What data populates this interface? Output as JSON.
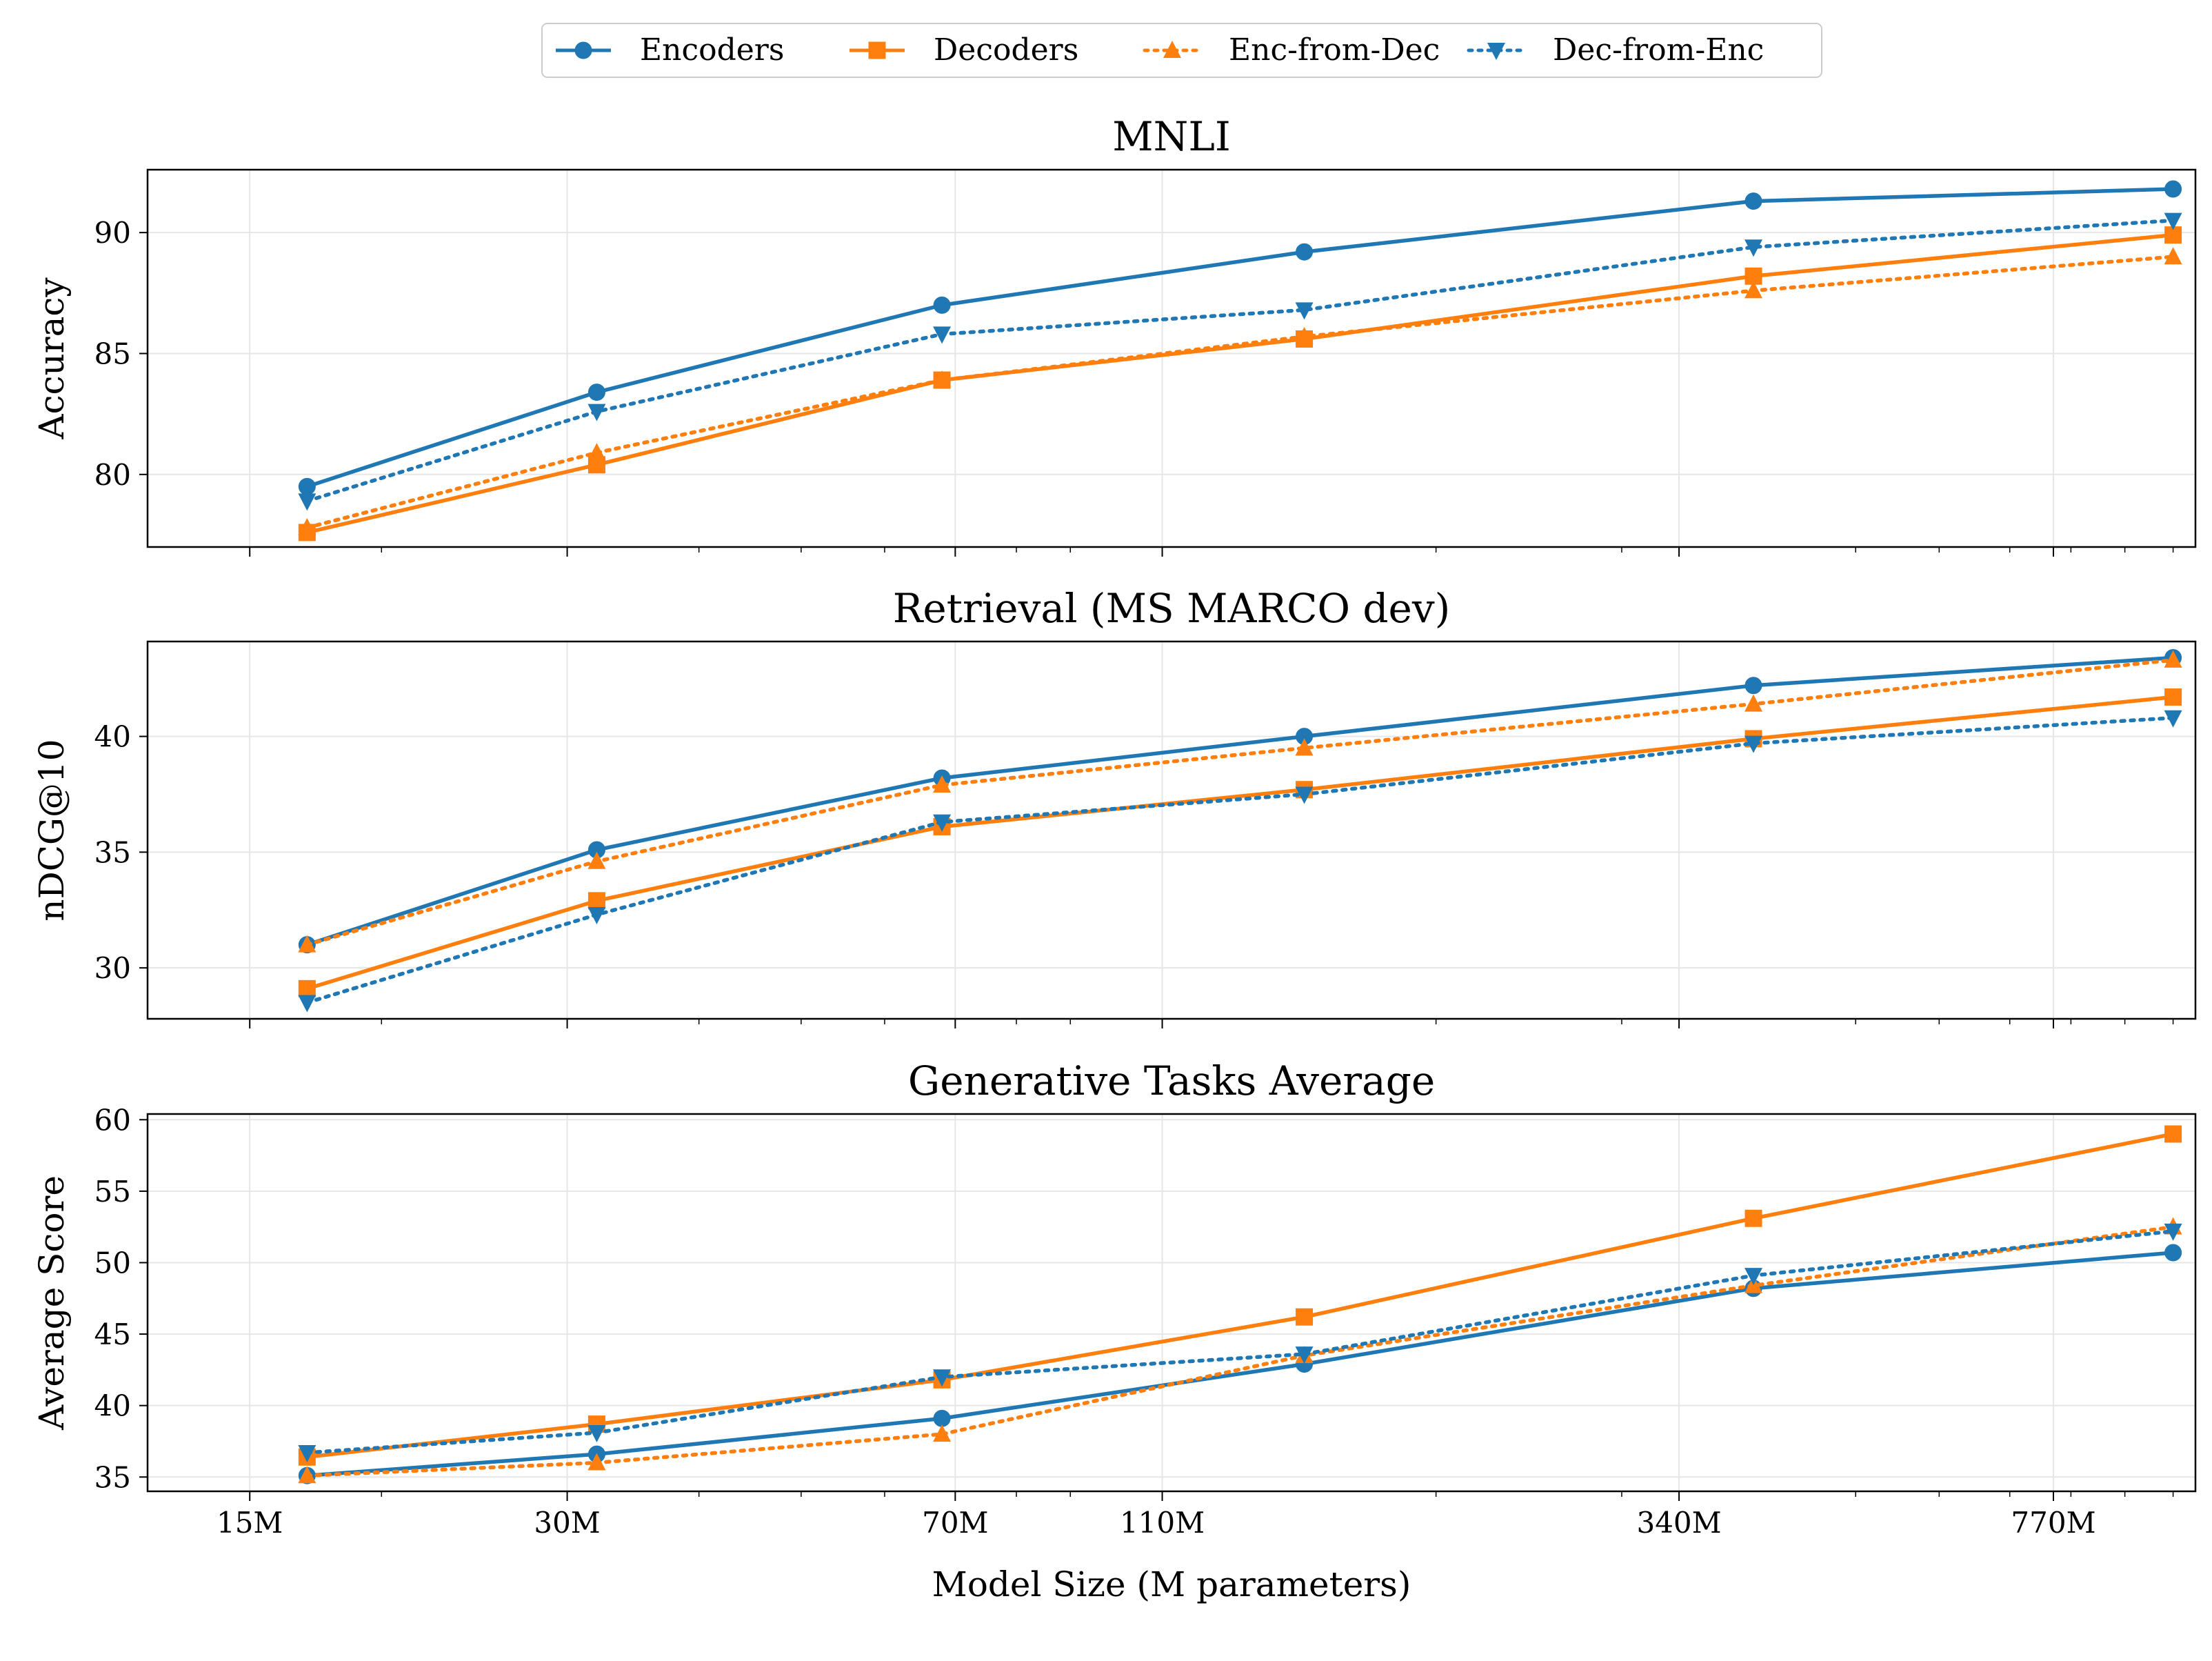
{
  "colors": {
    "blue": "#1f77b4",
    "orange": "#ff7f0e",
    "grid": "#e6e6e6"
  },
  "legend": [
    {
      "label": "Encoders",
      "color": "#1f77b4",
      "marker": "circle",
      "dash": "solid"
    },
    {
      "label": "Decoders",
      "color": "#ff7f0e",
      "marker": "square",
      "dash": "solid"
    },
    {
      "label": "Enc-from-Dec",
      "color": "#ff7f0e",
      "marker": "triangle-up",
      "dash": "dotted"
    },
    {
      "label": "Dec-from-Enc",
      "color": "#1f77b4",
      "marker": "triangle-down",
      "dash": "dotted"
    }
  ],
  "chart_data": {
    "type": "line",
    "xscale": "log",
    "xlabel": "Model Size (M parameters)",
    "x_ticks": [
      15,
      30,
      70,
      110,
      340,
      770
    ],
    "x_tick_labels": [
      "15M",
      "30M",
      "70M",
      "110M",
      "340M",
      "770M"
    ],
    "xlim": [
      12,
      1050
    ],
    "x": [
      17,
      32,
      68,
      150,
      400,
      1000
    ],
    "panels": [
      {
        "title": "MNLI",
        "ylabel": "Accuracy",
        "ylim": [
          77,
          92.6
        ],
        "yticks": [
          80,
          85,
          90
        ],
        "series": [
          {
            "name": "Encoders",
            "values": [
              79.5,
              83.4,
              87.0,
              89.2,
              91.3,
              91.8
            ]
          },
          {
            "name": "Decoders",
            "values": [
              77.6,
              80.4,
              83.9,
              85.6,
              88.2,
              89.9
            ]
          },
          {
            "name": "Enc-from-Dec",
            "values": [
              77.8,
              80.9,
              83.9,
              85.7,
              87.6,
              89.0
            ]
          },
          {
            "name": "Dec-from-Enc",
            "values": [
              78.9,
              82.6,
              85.8,
              86.8,
              89.4,
              90.5
            ]
          }
        ]
      },
      {
        "title": "Retrieval (MS MARCO dev)",
        "ylabel": "nDCG@10",
        "ylim": [
          27.8,
          44.1
        ],
        "yticks": [
          30,
          35,
          40
        ],
        "series": [
          {
            "name": "Encoders",
            "values": [
              31.0,
              35.1,
              38.2,
              40.0,
              42.2,
              43.4
            ]
          },
          {
            "name": "Decoders",
            "values": [
              29.1,
              32.9,
              36.1,
              37.7,
              39.9,
              41.7
            ]
          },
          {
            "name": "Enc-from-Dec",
            "values": [
              31.0,
              34.6,
              37.9,
              39.5,
              41.4,
              43.3
            ]
          },
          {
            "name": "Dec-from-Enc",
            "values": [
              28.5,
              32.3,
              36.3,
              37.5,
              39.7,
              40.8
            ]
          }
        ]
      },
      {
        "title": "Generative Tasks Average",
        "ylabel": "Average Score",
        "ylim": [
          34,
          60.4
        ],
        "yticks": [
          35,
          40,
          45,
          50,
          55,
          60
        ],
        "series": [
          {
            "name": "Encoders",
            "values": [
              35.1,
              36.6,
              39.1,
              42.9,
              48.2,
              50.7
            ]
          },
          {
            "name": "Decoders",
            "values": [
              36.4,
              38.7,
              41.8,
              46.2,
              53.1,
              59.0
            ]
          },
          {
            "name": "Enc-from-Dec",
            "values": [
              35.1,
              36.0,
              38.0,
              43.5,
              48.4,
              52.5
            ]
          },
          {
            "name": "Dec-from-Enc",
            "values": [
              36.7,
              38.1,
              42.0,
              43.6,
              49.1,
              52.2
            ]
          }
        ]
      }
    ]
  }
}
